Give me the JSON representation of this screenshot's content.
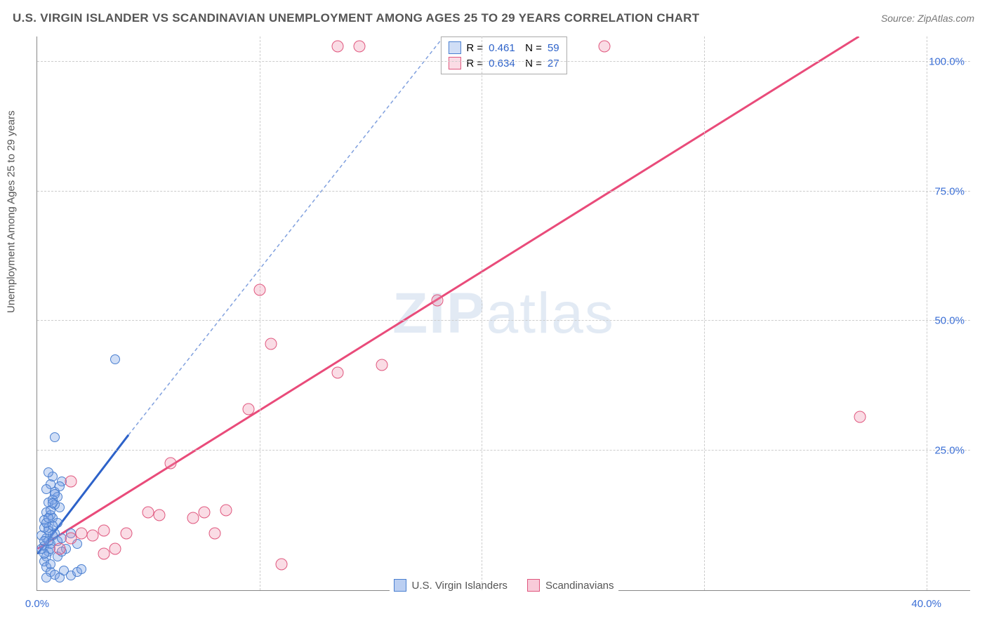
{
  "title": "U.S. VIRGIN ISLANDER VS SCANDINAVIAN UNEMPLOYMENT AMONG AGES 25 TO 29 YEARS CORRELATION CHART",
  "source": "Source: ZipAtlas.com",
  "ylabel": "Unemployment Among Ages 25 to 29 years",
  "watermark_bold": "ZIP",
  "watermark_rest": "atlas",
  "chart": {
    "type": "scatter",
    "xlim": [
      0,
      42
    ],
    "ylim": [
      -2,
      105
    ],
    "xticks": [
      0,
      10,
      20,
      30,
      40
    ],
    "xtick_labels": [
      "0.0%",
      "",
      "",
      "",
      "40.0%"
    ],
    "yticks": [
      25,
      50,
      75,
      100
    ],
    "ytick_labels": [
      "25.0%",
      "50.0%",
      "75.0%",
      "100.0%"
    ],
    "background_color": "#ffffff",
    "grid_color": "#cccccc",
    "series": [
      {
        "name": "U.S. Virgin Islanders",
        "fill": "rgba(120,160,230,0.35)",
        "stroke": "#4a7fd0",
        "marker_size": 14,
        "R": 0.461,
        "N": 59,
        "trend": {
          "x1": 0,
          "y1": 5,
          "x2": 4.1,
          "y2": 28,
          "xe": 18.3,
          "ye": 105,
          "color": "#2d62c9",
          "width": 3,
          "dash": "5,4"
        },
        "points": [
          [
            0.3,
            6.5
          ],
          [
            0.4,
            8.0
          ],
          [
            0.5,
            5.5
          ],
          [
            0.6,
            7.0
          ],
          [
            0.5,
            10.0
          ],
          [
            0.7,
            12.0
          ],
          [
            0.8,
            9.0
          ],
          [
            0.4,
            4.5
          ],
          [
            0.6,
            6.0
          ],
          [
            0.7,
            8.5
          ],
          [
            0.9,
            11.0
          ],
          [
            1.0,
            14.0
          ],
          [
            0.5,
            15.0
          ],
          [
            0.8,
            17.0
          ],
          [
            1.1,
            19.0
          ],
          [
            0.6,
            18.5
          ],
          [
            0.7,
            20.0
          ],
          [
            0.9,
            16.0
          ],
          [
            0.4,
            13.0
          ],
          [
            0.3,
            11.5
          ],
          [
            0.5,
            9.5
          ],
          [
            0.6,
            12.5
          ],
          [
            0.8,
            14.5
          ],
          [
            0.7,
            15.5
          ],
          [
            1.0,
            18.0
          ],
          [
            0.5,
            20.8
          ],
          [
            0.4,
            17.5
          ],
          [
            0.9,
            7.5
          ],
          [
            1.1,
            8.0
          ],
          [
            1.3,
            6.0
          ],
          [
            1.5,
            9.0
          ],
          [
            1.8,
            7.0
          ],
          [
            0.3,
            3.5
          ],
          [
            0.4,
            2.5
          ],
          [
            0.6,
            1.5
          ],
          [
            0.8,
            1.0
          ],
          [
            1.0,
            0.5
          ],
          [
            1.2,
            1.8
          ],
          [
            1.5,
            0.8
          ],
          [
            1.8,
            1.5
          ],
          [
            2.0,
            2.0
          ],
          [
            0.3,
            5.0
          ],
          [
            0.5,
            7.5
          ],
          [
            0.7,
            10.5
          ],
          [
            3.5,
            42.5
          ],
          [
            0.8,
            27.5
          ],
          [
            0.4,
            0.5
          ],
          [
            0.6,
            3.0
          ],
          [
            0.9,
            4.5
          ],
          [
            1.1,
            5.5
          ],
          [
            0.2,
            8.5
          ],
          [
            0.3,
            10.0
          ],
          [
            0.4,
            11.0
          ],
          [
            0.5,
            12.0
          ],
          [
            0.6,
            13.5
          ],
          [
            0.7,
            14.8
          ],
          [
            0.8,
            16.5
          ],
          [
            0.2,
            6.0
          ],
          [
            0.3,
            7.5
          ]
        ]
      },
      {
        "name": "Scandinavians",
        "fill": "rgba(240,140,170,0.30)",
        "stroke": "#e0577e",
        "marker_size": 17,
        "R": 0.634,
        "N": 27,
        "trend": {
          "x1": 0,
          "y1": 6,
          "x2": 37,
          "y2": 105,
          "color": "#e94b7a",
          "width": 3
        },
        "points": [
          [
            1.0,
            6.0
          ],
          [
            1.5,
            8.0
          ],
          [
            2.0,
            9.0
          ],
          [
            2.5,
            8.5
          ],
          [
            3.0,
            9.5
          ],
          [
            3.5,
            6.0
          ],
          [
            4.0,
            9.0
          ],
          [
            5.0,
            13.0
          ],
          [
            5.5,
            12.5
          ],
          [
            6.0,
            22.5
          ],
          [
            7.0,
            12.0
          ],
          [
            7.5,
            13.0
          ],
          [
            8.0,
            9.0
          ],
          [
            8.5,
            13.5
          ],
          [
            9.5,
            33.0
          ],
          [
            10.0,
            56.0
          ],
          [
            10.5,
            45.5
          ],
          [
            11.0,
            3.0
          ],
          [
            13.5,
            40.0
          ],
          [
            13.5,
            103.0
          ],
          [
            14.5,
            103.0
          ],
          [
            15.5,
            41.5
          ],
          [
            18.0,
            54.0
          ],
          [
            25.5,
            103.0
          ],
          [
            37.0,
            31.5
          ],
          [
            1.5,
            19.0
          ],
          [
            3.0,
            5.0
          ]
        ]
      }
    ],
    "stats_box": {
      "label_R": "R =",
      "label_N": "N =",
      "value_color": "#2d62c9",
      "text_color": "#555555"
    },
    "bottom_legend": [
      {
        "label": "U.S. Virgin Islanders",
        "fill": "rgba(120,160,230,0.5)",
        "stroke": "#4a7fd0"
      },
      {
        "label": "Scandinavians",
        "fill": "rgba(240,140,170,0.45)",
        "stroke": "#e0577e"
      }
    ]
  }
}
